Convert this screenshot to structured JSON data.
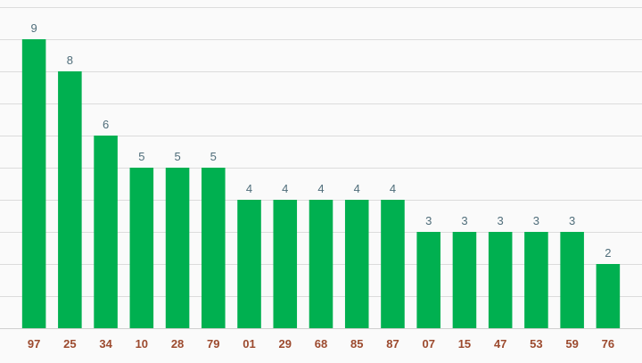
{
  "chart_data": {
    "type": "bar",
    "title": "",
    "xlabel": "",
    "ylabel": "",
    "categories": [
      "97",
      "25",
      "34",
      "10",
      "28",
      "79",
      "01",
      "29",
      "68",
      "85",
      "87",
      "07",
      "15",
      "47",
      "53",
      "59",
      "76"
    ],
    "values": [
      9,
      8,
      6,
      5,
      5,
      5,
      4,
      4,
      4,
      4,
      4,
      3,
      3,
      3,
      3,
      3,
      2
    ],
    "ylim": [
      0,
      10
    ],
    "grid": true,
    "legend": "none",
    "colors": {
      "bar": "#00b050",
      "data_label": "#4f6d7a",
      "category_label": "#9c4a2e",
      "grid": "#dcdcdc",
      "background": "#fafafa"
    }
  }
}
